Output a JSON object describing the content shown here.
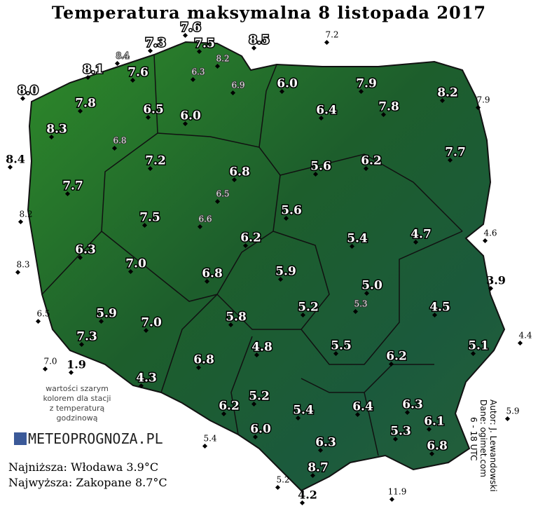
{
  "title": "Temperatura maksymalna 8 listopada 2017",
  "stations": [
    "7.3",
    "7.6",
    "7.5",
    "8.5",
    "8.1",
    "7.6",
    "8.0",
    "7.8",
    "6.5",
    "6.0",
    "6.0",
    "7.9",
    "8.2",
    "6.4",
    "7.8",
    "8.3",
    "7.2",
    "6.8",
    "5.6",
    "6.2",
    "7.7",
    "7.7",
    "7.5",
    "5.6",
    "6.2",
    "5.4",
    "4.7",
    "6.3",
    "7.0",
    "6.8",
    "5.9",
    "5.0",
    "4.5",
    "5.9",
    "7.0",
    "5.8",
    "5.2",
    "7.3",
    "5.5",
    "5.1",
    "4.3",
    "6.8",
    "4.8",
    "6.2",
    "5.2",
    "6.2",
    "5.4",
    "6.4",
    "6.3",
    "6.0",
    "5.3",
    "6.1",
    "6.3",
    "6.8",
    "8.7"
  ],
  "outside_stations": [
    "4.6",
    "3.9",
    "7.9",
    "8.4",
    "8.2",
    "8.3",
    "6.5",
    "7.0",
    "1.9",
    "4.4",
    "5.9",
    "5.4",
    "5.2",
    "4.2",
    "11.9",
    "7.2"
  ],
  "hourly_stations": [
    "8.4",
    "8.2",
    "6.3",
    "6.9",
    "6.8",
    "6.5",
    "6.6",
    "5.3"
  ],
  "note": [
    "wartości szarym",
    "kolorem dla stacji",
    "z temperaturą",
    "godzinową"
  ],
  "logo": "METEOPROGNOZA.PL",
  "minimum": "Najniższa: Włodawa 3.9°C",
  "maximum": "Najwyższa: Zakopane 8.7°C",
  "credits": [
    "Autor: J. Lewandowski",
    "Dane: ogimet.com",
    "6 - 18 UTC"
  ]
}
